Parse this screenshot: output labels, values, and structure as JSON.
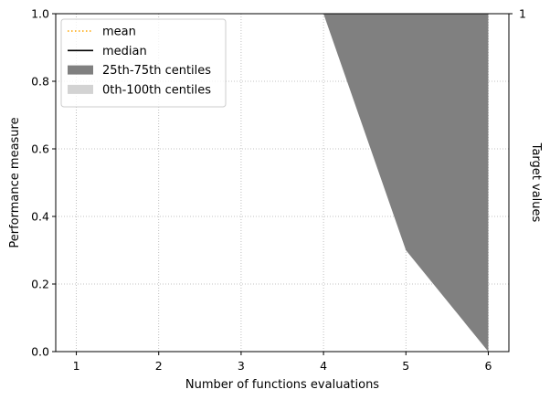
{
  "chart_data": {
    "type": "area",
    "xlabel": "Number of functions evaluations",
    "ylabel": "Performance measure",
    "right_ylabel": "Target values",
    "xlim": [
      0.75,
      6.25
    ],
    "ylim": [
      0,
      1
    ],
    "xticks": [
      1,
      2,
      3,
      4,
      5,
      6
    ],
    "yticks": [
      0.0,
      0.2,
      0.4,
      0.6,
      0.8,
      1.0
    ],
    "right_yticks": [
      1
    ],
    "grid": true,
    "legend_placement": "top-left",
    "legend": [
      {
        "label": "mean",
        "style": "dotted-line",
        "color": "#ffa500"
      },
      {
        "label": "median",
        "style": "line",
        "color": "#000000"
      },
      {
        "label": "25th-75th centiles",
        "style": "patch",
        "color": "#808080"
      },
      {
        "label": "0th-100th centiles",
        "style": "patch",
        "color": "#d3d3d3"
      }
    ],
    "band_25_75": {
      "color": "#808080",
      "x": [
        4,
        5,
        6
      ],
      "lower": [
        1.0,
        0.3,
        0.0
      ],
      "upper": [
        1.0,
        1.0,
        1.0
      ]
    }
  }
}
